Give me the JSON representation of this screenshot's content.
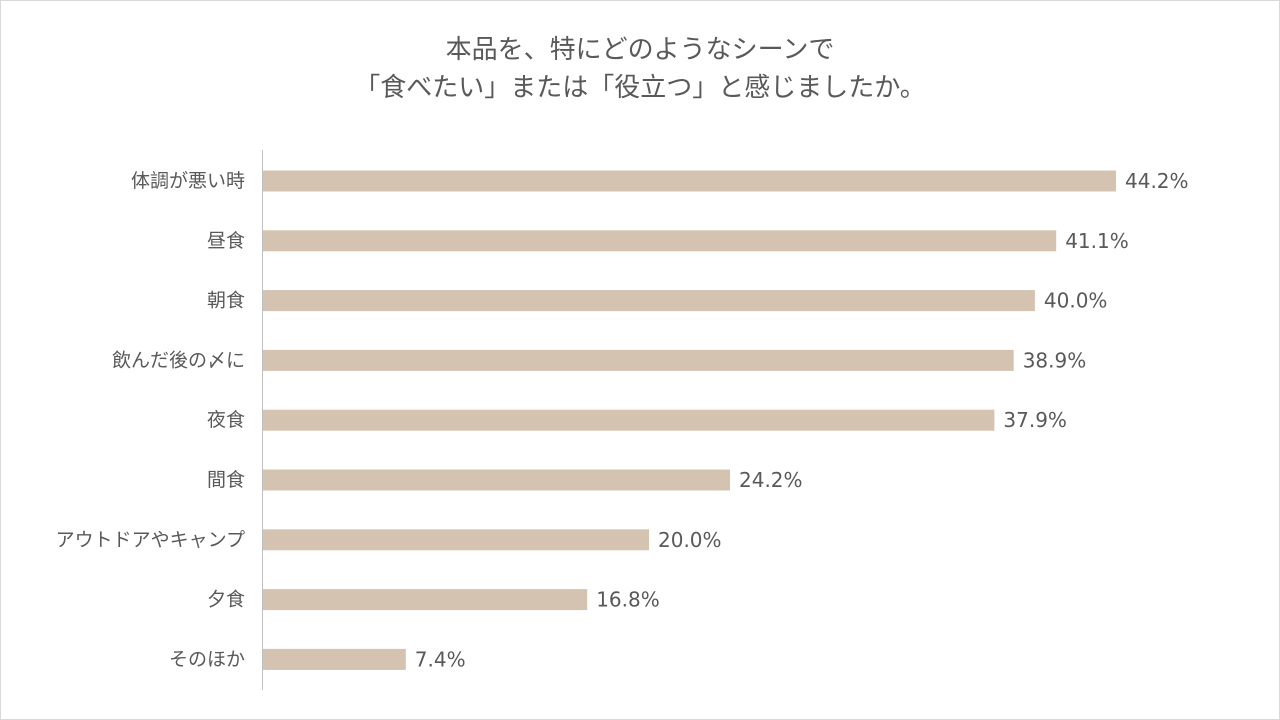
{
  "chart_data": {
    "type": "bar",
    "orientation": "horizontal",
    "title_lines": [
      "本品を、特にどのようなシーンで",
      "「食べたい」または「役立つ」と感じましたか。"
    ],
    "categories": [
      "体調が悪い時",
      "昼食",
      "朝食",
      "飲んだ後の〆に",
      "夜食",
      "間食",
      "アウトドアやキャンプ",
      "夕食",
      "そのほか"
    ],
    "values": [
      44.2,
      41.1,
      40.0,
      38.9,
      37.9,
      24.2,
      20.0,
      16.8,
      7.4
    ],
    "value_labels": [
      "44.2%",
      "41.1%",
      "40.0%",
      "38.9%",
      "37.9%",
      "24.2%",
      "20.0%",
      "16.8%",
      "7.4%"
    ],
    "xlim": [
      0,
      44.2
    ],
    "grid": false,
    "legend": "none",
    "colors": {
      "bar": "#d5c3b1",
      "axis": "#bfbfbf",
      "text": "#595959"
    }
  }
}
